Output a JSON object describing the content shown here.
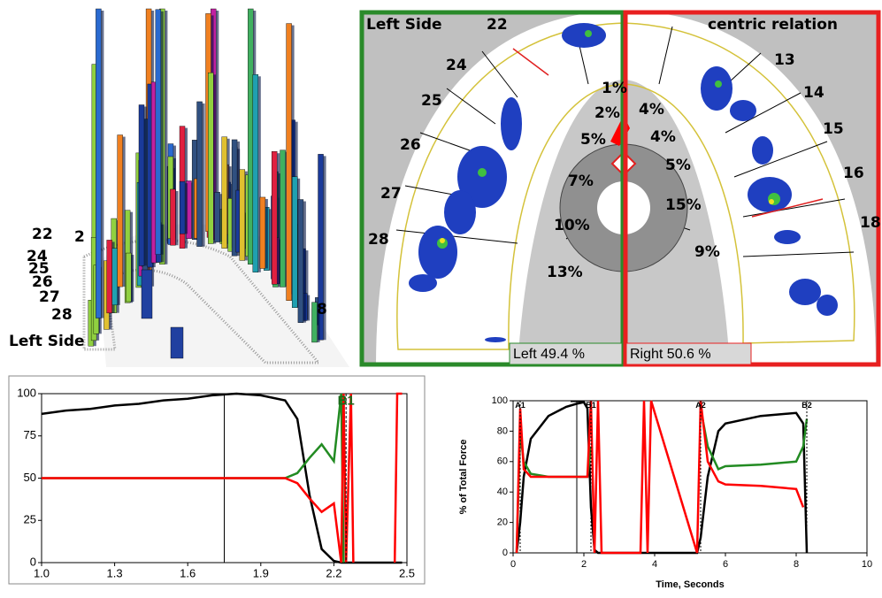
{
  "chart_data": [
    {
      "type": "line",
      "x": [
        1.0,
        1.1,
        1.2,
        1.3,
        1.4,
        1.5,
        1.6,
        1.7,
        1.8,
        1.9,
        2.0,
        2.05,
        2.1,
        2.15,
        2.2,
        2.23,
        2.24,
        2.25,
        2.27,
        2.28,
        2.3,
        2.4,
        2.45,
        2.46,
        2.48
      ],
      "series": [
        {
          "color": "#000000",
          "values": [
            88,
            90,
            91,
            93,
            94,
            96,
            97,
            99,
            100,
            99,
            96,
            85,
            40,
            8,
            1,
            0,
            0,
            0,
            0,
            0,
            0,
            0,
            0,
            0,
            0
          ]
        },
        {
          "color": "#228b22",
          "values": [
            50,
            50,
            50,
            50,
            50,
            50,
            50,
            50,
            50,
            50,
            50,
            53,
            62,
            70,
            60,
            100,
            0,
            null,
            null,
            null,
            null,
            null,
            null,
            null,
            null
          ]
        },
        {
          "color": "#ff0000",
          "values": [
            50,
            50,
            50,
            50,
            50,
            50,
            50,
            50,
            50,
            50,
            50,
            47,
            38,
            30,
            35,
            0,
            100,
            0,
            100,
            0,
            null,
            null,
            0,
            100,
            100
          ]
        }
      ],
      "xlim": [
        1.0,
        2.5
      ],
      "xticks": [
        {
          "value": 1.0,
          "label": "1.0"
        },
        1.3,
        1.6,
        1.9,
        2.2,
        2.5
      ],
      "ylim": [
        0,
        100
      ],
      "yticks": [
        0,
        25,
        50,
        75,
        100
      ],
      "cursor_x": 1.75,
      "markers": [
        {
          "label": "B1",
          "x": 2.25
        }
      ]
    },
    {
      "type": "line",
      "x_label": "Time, Seconds",
      "y_label": "% of Total Force",
      "x": [
        0.1,
        0.2,
        0.3,
        0.5,
        1.0,
        1.5,
        1.8,
        2.0,
        2.1,
        2.2,
        2.3,
        2.4,
        2.5,
        3.6,
        3.7,
        3.8,
        3.9,
        5.2,
        5.3,
        5.5,
        5.8,
        6.0,
        7.0,
        8.0,
        8.2,
        8.3
      ],
      "series": [
        {
          "color": "#000000",
          "values": [
            0,
            20,
            50,
            75,
            90,
            96,
            98,
            99,
            95,
            30,
            2,
            0,
            0,
            0,
            0,
            0,
            0,
            0,
            10,
            50,
            80,
            85,
            90,
            92,
            85,
            0
          ]
        },
        {
          "color": "#228b22",
          "values": [
            0,
            80,
            60,
            52,
            50,
            50,
            50,
            50,
            50,
            70,
            null,
            null,
            null,
            null,
            null,
            null,
            null,
            null,
            95,
            70,
            55,
            57,
            58,
            60,
            70,
            88
          ]
        },
        {
          "color": "#ff0000",
          "values": [
            0,
            95,
            55,
            50,
            50,
            50,
            50,
            50,
            50,
            100,
            0,
            100,
            0,
            0,
            100,
            0,
            100,
            0,
            100,
            60,
            47,
            45,
            44,
            42,
            30,
            null
          ]
        }
      ],
      "xlim": [
        0,
        10
      ],
      "xticks": [
        0,
        2,
        4,
        6,
        8,
        10
      ],
      "ylim": [
        0,
        100
      ],
      "yticks": [
        0,
        20,
        40,
        60,
        80,
        100
      ],
      "cursor_x": 1.8,
      "markers": [
        {
          "label": "A1",
          "x": 0.2
        },
        {
          "label": "B1",
          "x": 2.2
        },
        {
          "label": "A2",
          "x": 5.3
        },
        {
          "label": "B2",
          "x": 8.3
        }
      ]
    }
  ],
  "view_3d": {
    "tooth_labels": [
      "22",
      "24",
      "25",
      "26",
      "27",
      "28"
    ],
    "edge_left": "2",
    "edge_right": "8",
    "side_label": "Left Side"
  },
  "occlusal_map": {
    "left_title": "Left Side",
    "right_title": "centric relation",
    "left_teeth": [
      "22",
      "24",
      "25",
      "26",
      "27",
      "28"
    ],
    "right_teeth": [
      "13",
      "14",
      "15",
      "16",
      "18"
    ],
    "percent_labels": [
      "1%",
      "2%",
      "4%",
      "5%",
      "4%",
      "5%",
      "7%",
      "15%",
      "10%",
      "9%",
      "13%"
    ],
    "left_total": "Left 49.4 %",
    "right_total": "Right 50.6 %"
  }
}
